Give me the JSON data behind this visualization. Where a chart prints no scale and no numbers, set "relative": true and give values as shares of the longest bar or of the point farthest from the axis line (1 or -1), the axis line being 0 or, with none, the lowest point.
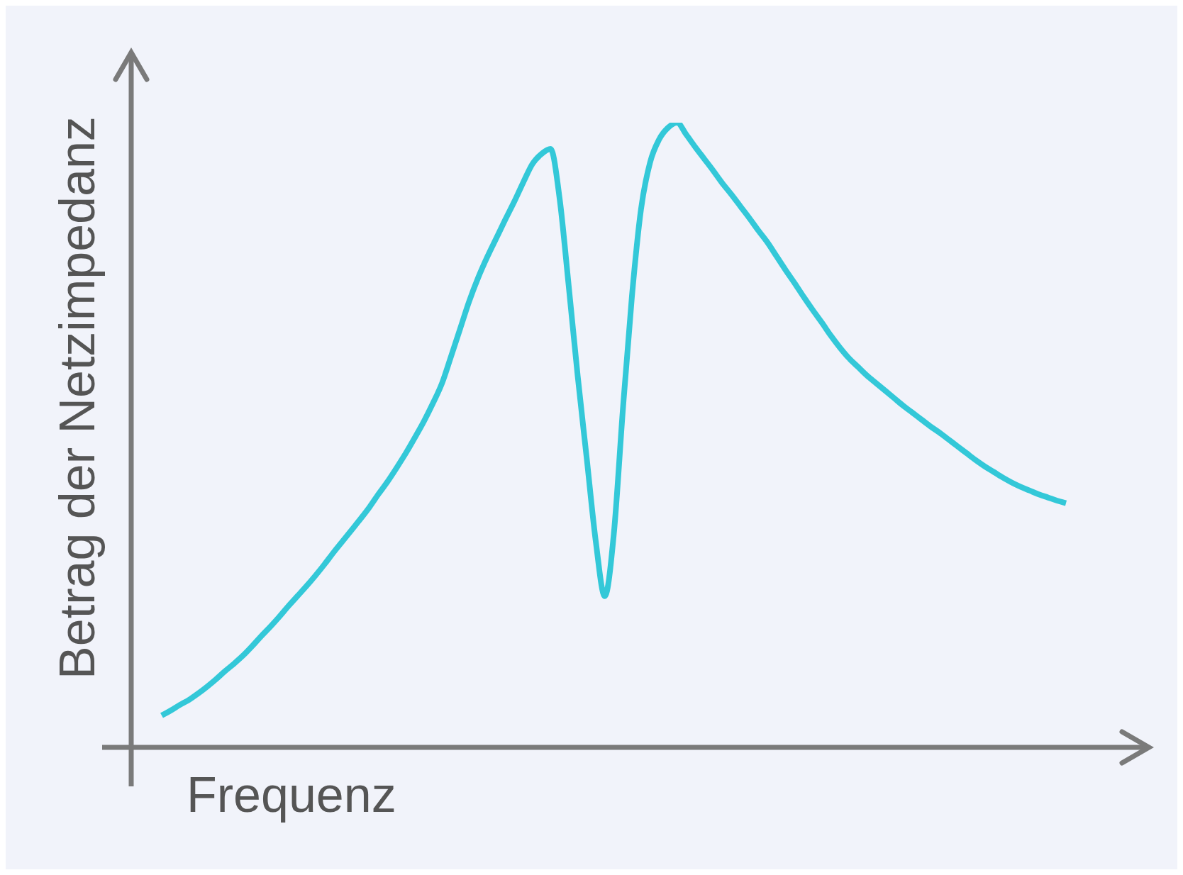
{
  "chart_data": {
    "type": "line",
    "xlabel": "Frequenz",
    "ylabel": "Betrag der Netzimpedanz",
    "relative": true,
    "grid": false,
    "legend": false,
    "marker": "none",
    "categories": [
      null,
      null,
      null,
      null,
      null,
      null,
      null,
      null,
      null,
      null,
      null,
      null,
      null,
      null,
      null,
      null,
      null,
      null,
      null,
      null,
      null,
      null,
      null,
      null,
      null,
      null,
      null,
      null,
      null,
      null,
      null,
      null,
      null,
      null,
      null,
      null,
      null,
      null,
      null,
      null,
      null,
      null,
      null,
      null,
      null,
      null,
      null,
      null,
      null,
      null,
      null,
      null,
      null,
      null,
      null,
      null,
      null,
      null,
      null,
      null,
      null,
      null,
      null,
      null,
      null,
      null,
      null,
      null,
      null,
      null,
      null,
      null,
      null,
      null,
      null,
      null,
      null,
      null,
      null,
      null,
      null,
      null,
      null,
      null,
      null,
      null,
      null,
      null,
      null,
      null,
      null,
      null,
      null,
      null,
      null,
      null,
      null,
      null,
      null,
      null,
      null
    ],
    "series": [
      {
        "color": "#33c8d8",
        "values": [
          0.051,
          0.059,
          0.068,
          0.076,
          0.086,
          0.097,
          0.109,
          0.122,
          0.134,
          0.147,
          0.162,
          0.178,
          0.193,
          0.209,
          0.226,
          0.242,
          0.258,
          0.275,
          0.293,
          0.312,
          0.33,
          0.348,
          0.366,
          0.385,
          0.406,
          0.426,
          0.448,
          0.471,
          0.496,
          0.522,
          0.551,
          0.583,
          0.626,
          0.67,
          0.714,
          0.752,
          0.785,
          0.815,
          0.845,
          0.874,
          0.905,
          0.934,
          0.95,
          0.958,
          0.879,
          0.74,
          0.595,
          0.463,
          0.33,
          0.242,
          0.342,
          0.541,
          0.722,
          0.861,
          0.936,
          0.973,
          0.992,
          1,
          0.981,
          0.961,
          0.942,
          0.923,
          0.903,
          0.885,
          0.866,
          0.847,
          0.827,
          0.808,
          0.786,
          0.764,
          0.743,
          0.721,
          0.7,
          0.68,
          0.659,
          0.64,
          0.623,
          0.609,
          0.595,
          0.583,
          0.571,
          0.559,
          0.547,
          0.536,
          0.525,
          0.514,
          0.504,
          0.493,
          0.482,
          0.471,
          0.46,
          0.45,
          0.441,
          0.432,
          0.424,
          0.417,
          0.411,
          0.405,
          0.4,
          0.395,
          0.391
        ]
      }
    ]
  }
}
